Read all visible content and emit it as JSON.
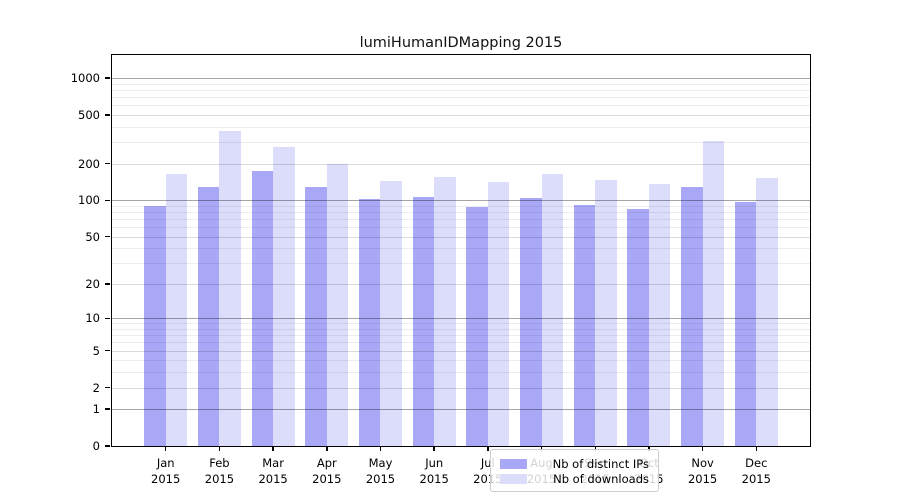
{
  "title": "lumiHumanIDMapping 2015",
  "chart_data": {
    "type": "bar",
    "title": "lumiHumanIDMapping 2015",
    "categories": [
      "Jan",
      "Feb",
      "Mar",
      "Apr",
      "May",
      "Jun",
      "Jul",
      "Aug",
      "Sep",
      "Oct",
      "Nov",
      "Dec"
    ],
    "x_tick_second_line": "2015",
    "series": [
      {
        "name": "Nb of distinct IPs",
        "color": "#a8a8f7",
        "values": [
          89,
          129,
          174,
          128,
          102,
          106,
          88,
          104,
          92,
          85,
          129,
          97
        ]
      },
      {
        "name": "Nb of downloads",
        "color": "#dcdcfb",
        "values": [
          163,
          370,
          271,
          198,
          143,
          155,
          140,
          165,
          146,
          135,
          307,
          153
        ]
      }
    ],
    "xlabel": "",
    "ylabel": "",
    "yscale": "log10(1+y)",
    "yticks": [
      0,
      1,
      2,
      5,
      10,
      20,
      50,
      100,
      200,
      500,
      1000
    ],
    "ytick_decades": [
      1,
      10,
      100,
      1000
    ],
    "yminor_gridlines": [
      3,
      4,
      6,
      7,
      8,
      9,
      30,
      40,
      60,
      70,
      80,
      90,
      300,
      400,
      600,
      700,
      800,
      900
    ],
    "ylim": [
      0,
      1542
    ],
    "grid": "horizontal major and minor, drawn over bars",
    "legend_position": "lower center",
    "frame": "full box, black spines"
  },
  "colors": {
    "distinct_ips_bar": "#a8a8f7",
    "downloads_bar": "#dcdcfb",
    "decade_gridline": "#a6a6a6",
    "major_gridline": "#dbdbdb",
    "minor_gridline": "#ededed",
    "background": "#ffffff",
    "text": "#000000"
  }
}
